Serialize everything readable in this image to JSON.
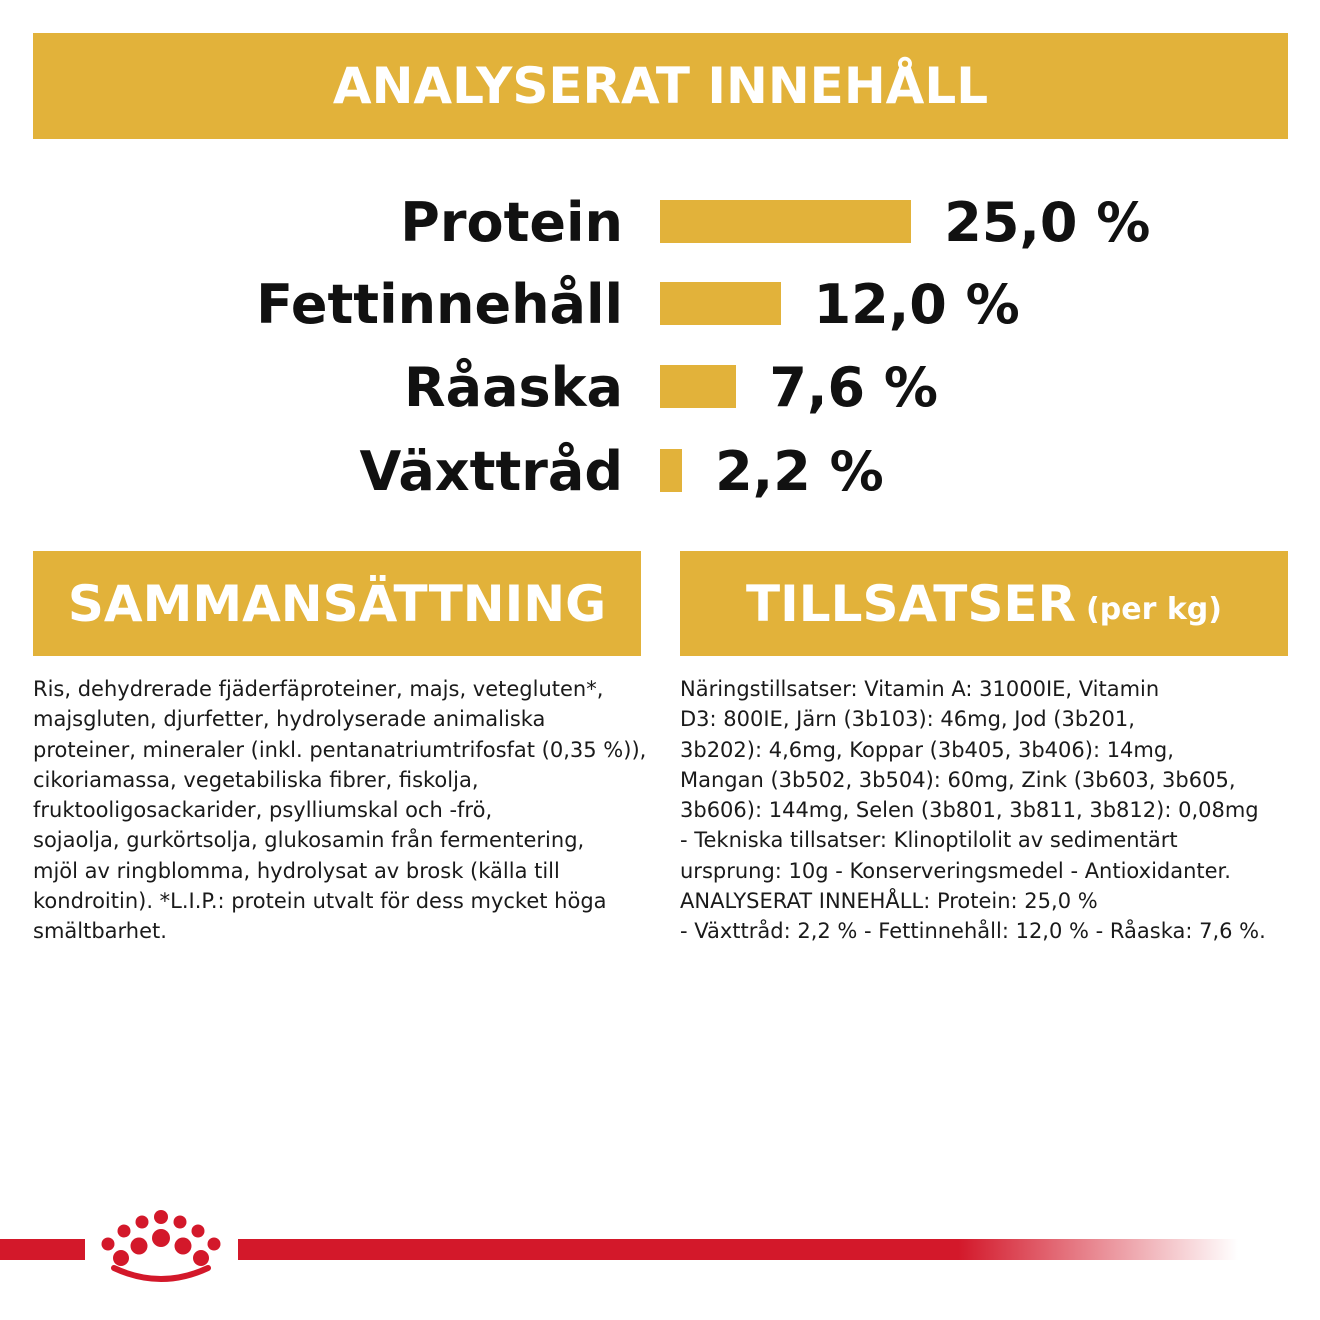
{
  "header": {
    "title": "ANALYSERAT INNEHÅLL"
  },
  "analysis": {
    "rows": [
      {
        "label": "Protein",
        "value": "25,0 %",
        "percent": 25.0
      },
      {
        "label": "Fettinnehåll",
        "value": "12,0 %",
        "percent": 12.0
      },
      {
        "label": "Råaska",
        "value": "7,6 %",
        "percent": 7.6
      },
      {
        "label": "Växttråd",
        "value": "2,2 %",
        "percent": 2.2
      }
    ]
  },
  "composition": {
    "title": "SAMMANSÄTTNING",
    "lines": [
      "Ris, dehydrerade fjäderfäproteiner, majs, vetegluten*,",
      "majsgluten, djurfetter, hydrolyserade animaliska",
      "proteiner, mineraler (inkl. pentanatriumtrifosfat (0,35 %)),",
      "cikoriamassa, vegetabiliska fibrer, fiskolja,",
      "fruktooligosackarider, psylliumskal och -frö,",
      "sojaolja, gurkörtsolja, glukosamin från fermentering,",
      "mjöl av ringblomma, hydrolysat av brosk (källa till",
      "kondroitin). *L.I.P.: protein utvalt för dess mycket höga",
      "smältbarhet."
    ]
  },
  "additives": {
    "title": "TILLSATSER",
    "title_suffix": "(per kg)",
    "lines": [
      "Näringstillsatser: Vitamin A: 31000IE, Vitamin",
      "D3: 800IE, Järn (3b103): 46mg, Jod (3b201,",
      "3b202): 4,6mg, Koppar (3b405, 3b406): 14mg,",
      "Mangan (3b502, 3b504): 60mg, Zink (3b603, 3b605,",
      "3b606): 144mg, Selen (3b801, 3b811, 3b812): 0,08mg",
      "- Tekniska tillsatser: Klinoptilolit av sedimentärt",
      "ursprung: 10g - Konserveringsmedel - Antioxidanter.",
      "ANALYSERAT INNEHÅLL: Protein: 25,0 %",
      "- Växttråd: 2,2 % - Fettinnehåll: 12,0 % - Råaska: 7,6 %."
    ]
  },
  "footer": {
    "logo_icon": "royal-canin-crown-icon"
  },
  "colors": {
    "gold": "#e2b23a",
    "brand_red": "#d3182a",
    "text": "#111111"
  }
}
